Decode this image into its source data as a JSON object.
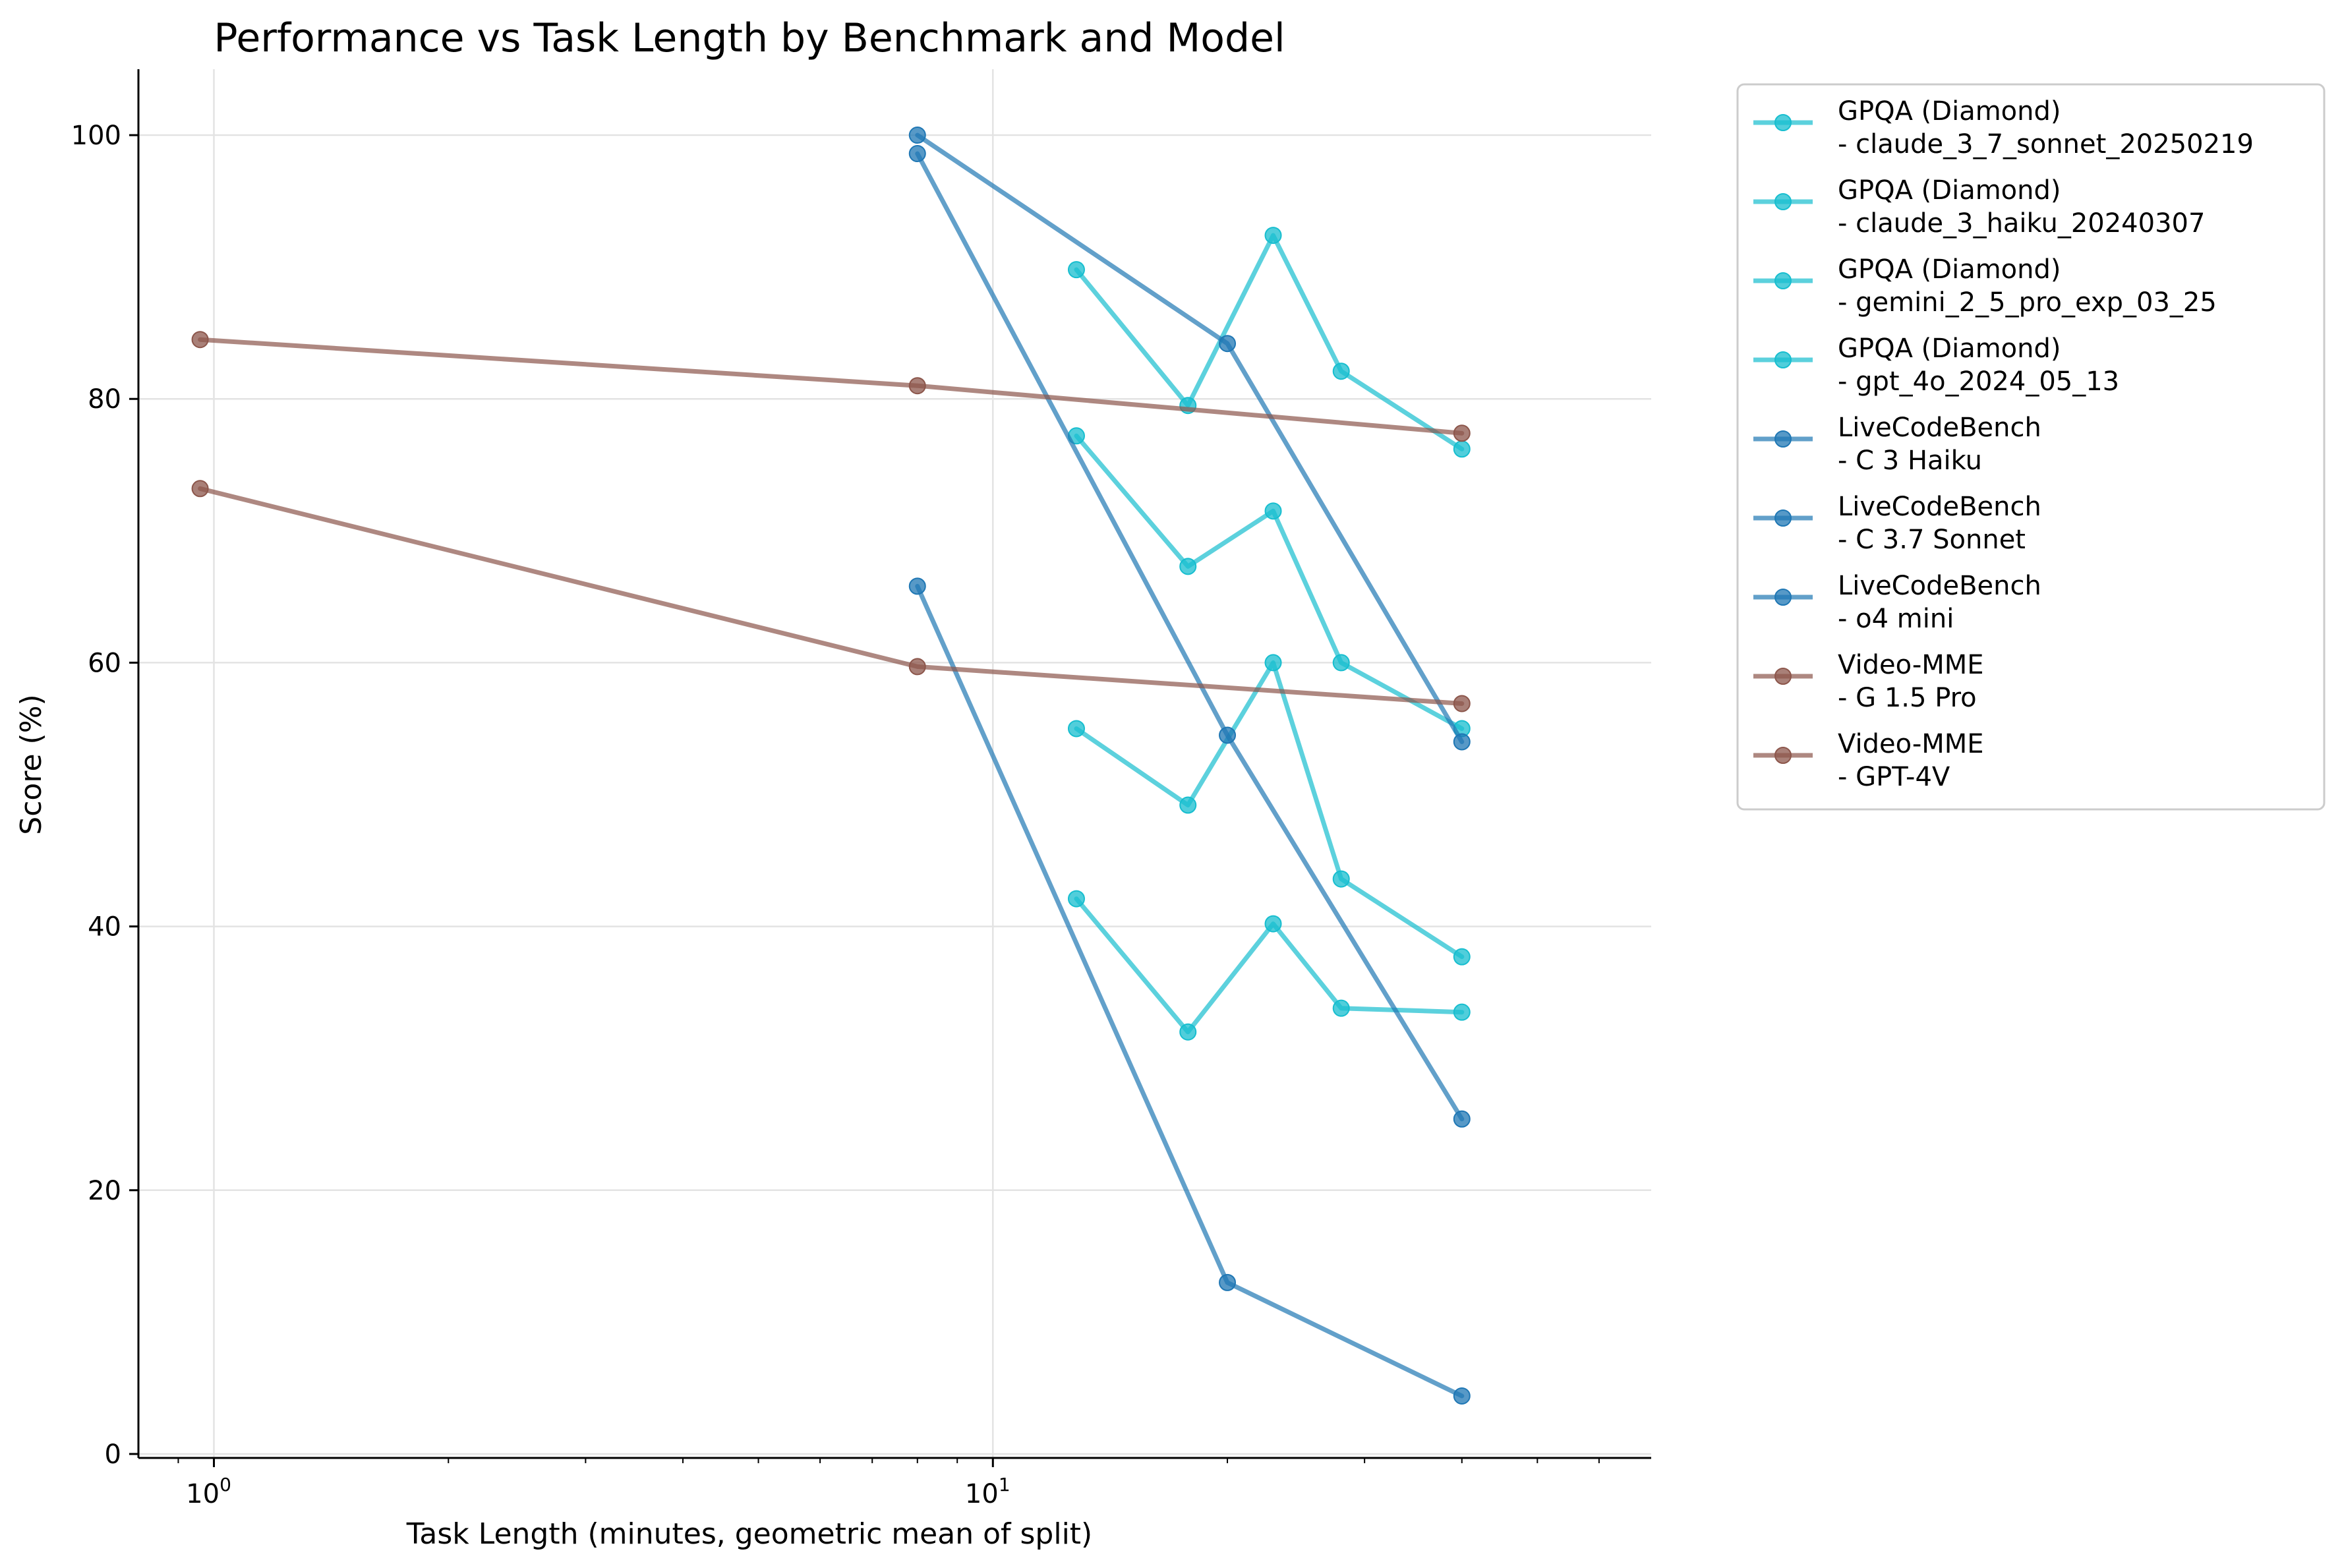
{
  "chart_data": {
    "type": "line",
    "title": "Performance vs Task Length by Benchmark and Model",
    "xlabel": "Task Length (minutes, geometric mean of split)",
    "ylabel": "Score (%)",
    "x_scale": "log",
    "xlim": [
      0.8,
      70
    ],
    "ylim": [
      -0.3,
      105
    ],
    "x_ticks": [
      {
        "value": 1,
        "base": "10",
        "exp": "0"
      },
      {
        "value": 10,
        "base": "10",
        "exp": "1"
      }
    ],
    "y_ticks": [
      0,
      20,
      40,
      60,
      80,
      100
    ],
    "grid": true,
    "legend_position": "outside-right",
    "series": [
      {
        "name": "GPQA (Diamond)\n- claude_3_7_sonnet_20250219",
        "color": "#17becf",
        "x": [
          12.8,
          17.8,
          22.9,
          28.0,
          40.0
        ],
        "y": [
          89.8,
          79.5,
          92.4,
          82.1,
          76.2
        ]
      },
      {
        "name": "GPQA (Diamond)\n- claude_3_haiku_20240307",
        "color": "#17becf",
        "x": [
          12.8,
          17.8,
          22.9,
          28.0,
          40.0
        ],
        "y": [
          42.1,
          32.0,
          40.2,
          33.8,
          33.5
        ]
      },
      {
        "name": "GPQA (Diamond)\n- gemini_2_5_pro_exp_03_25",
        "color": "#17becf",
        "x": [
          12.8,
          17.8,
          22.9,
          28.0,
          40.0
        ],
        "y": [
          77.2,
          67.3,
          71.5,
          60.0,
          55.0
        ]
      },
      {
        "name": "GPQA (Diamond)\n- gpt_4o_2024_05_13",
        "color": "#17becf",
        "x": [
          12.8,
          17.8,
          22.9,
          28.0,
          40.0
        ],
        "y": [
          55.0,
          49.2,
          60.0,
          43.6,
          37.7
        ]
      },
      {
        "name": "LiveCodeBench\n- C 3 Haiku",
        "color": "#1f77b4",
        "x": [
          8.0,
          20.0,
          40.0
        ],
        "y": [
          65.8,
          13.0,
          4.4
        ]
      },
      {
        "name": "LiveCodeBench\n- C 3.7 Sonnet",
        "color": "#1f77b4",
        "x": [
          8.0,
          20.0,
          40.0
        ],
        "y": [
          100.0,
          84.2,
          54.0
        ]
      },
      {
        "name": "LiveCodeBench\n- o4 mini",
        "color": "#1f77b4",
        "x": [
          8.0,
          20.0,
          40.0
        ],
        "y": [
          98.6,
          54.5,
          25.4
        ]
      },
      {
        "name": "Video-MME\n- G 1.5 Pro",
        "color": "#8c564b",
        "x": [
          0.96,
          8.0,
          40.0
        ],
        "y": [
          84.5,
          81.0,
          77.4
        ]
      },
      {
        "name": "Video-MME\n- GPT-4V",
        "color": "#8c564b",
        "x": [
          0.96,
          8.0,
          40.0
        ],
        "y": [
          73.2,
          59.7,
          56.9
        ]
      }
    ]
  }
}
